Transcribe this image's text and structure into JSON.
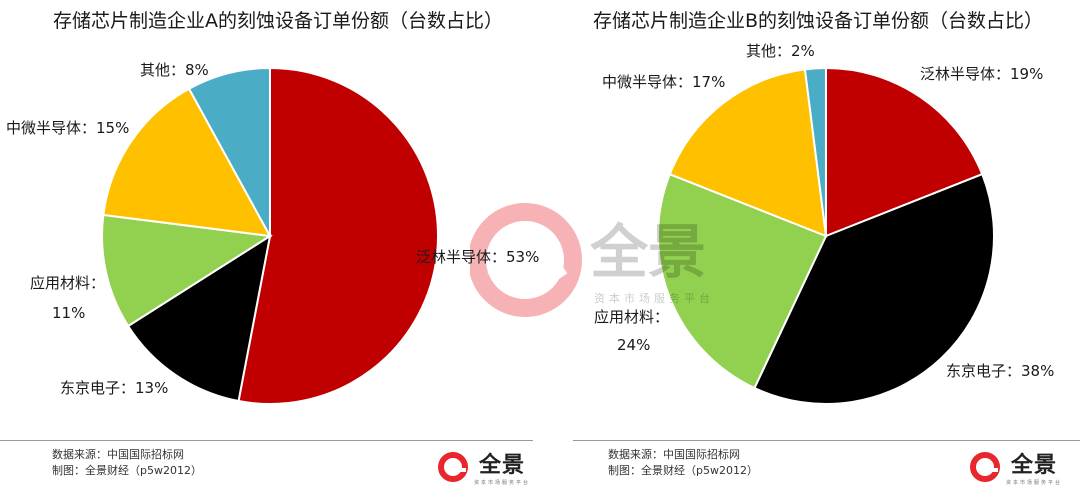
{
  "chart_data": [
    {
      "type": "pie",
      "title": "存储芯片制造企业A的刻蚀设备订单份额（台数占比）",
      "slices": [
        {
          "name": "泛林半导体",
          "value": 53,
          "label": "泛林半导体：53%",
          "color": "#c00000"
        },
        {
          "name": "东京电子",
          "value": 13,
          "label": "东京电子：13%",
          "color": "#000000"
        },
        {
          "name": "应用材料",
          "value": 11,
          "label_line1": "应用材料：",
          "label_line2": "11%",
          "color": "#92d050"
        },
        {
          "name": "中微半导体",
          "value": 15,
          "label": "中微半导体：15%",
          "color": "#ffc000"
        },
        {
          "name": "其他",
          "value": 8,
          "label": "其他：8%",
          "color": "#4bacc6"
        }
      ]
    },
    {
      "type": "pie",
      "title": "存储芯片制造企业B的刻蚀设备订单份额（台数占比）",
      "slices": [
        {
          "name": "泛林半导体",
          "value": 19,
          "label": "泛林半导体：19%",
          "color": "#c00000"
        },
        {
          "name": "东京电子",
          "value": 38,
          "label": "东京电子：38%",
          "color": "#000000"
        },
        {
          "name": "应用材料",
          "value": 24,
          "label_line1": "应用材料：",
          "label_line2": "24%",
          "color": "#92d050"
        },
        {
          "name": "中微半导体",
          "value": 17,
          "label": "中微半导体：17%",
          "color": "#ffc000"
        },
        {
          "name": "其他",
          "value": 2,
          "label": "其他：2%",
          "color": "#4bacc6"
        }
      ]
    }
  ],
  "footer": {
    "source": "数据来源：中国国际招标网",
    "credit": "制图：全景财经（p5w2012）"
  },
  "logo": {
    "name": "全景",
    "subtitle": "资本市场服务平台",
    "brand_color": "#e8262d"
  },
  "watermark": {
    "name": "全景",
    "subtitle": "资本市场服务平台"
  }
}
